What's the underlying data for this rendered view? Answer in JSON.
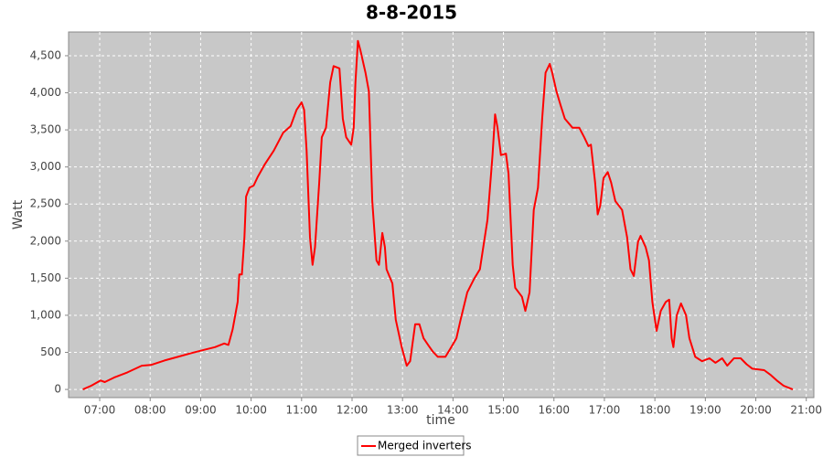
{
  "chart_data": {
    "type": "line",
    "title": "8-8-2015",
    "x_label": "time",
    "y_label": "Watt",
    "x": [
      "06:40",
      "06:50",
      "07:01",
      "07:06",
      "07:17",
      "07:33",
      "07:50",
      "08:01",
      "08:17",
      "08:33",
      "08:49",
      "09:06",
      "09:17",
      "09:28",
      "09:33",
      "09:38",
      "09:44",
      "09:46",
      "09:49",
      "09:52",
      "09:54",
      "09:58",
      "10:03",
      "10:08",
      "10:16",
      "10:27",
      "10:38",
      "10:47",
      "10:54",
      "11:00",
      "11:03",
      "11:06",
      "11:10",
      "11:13",
      "11:16",
      "11:21",
      "11:24",
      "11:29",
      "11:34",
      "11:38",
      "11:45",
      "11:49",
      "11:53",
      "11:59",
      "12:02",
      "12:04",
      "12:07",
      "12:10",
      "12:16",
      "12:20",
      "12:24",
      "12:29",
      "12:32",
      "12:36",
      "12:39",
      "12:41",
      "12:48",
      "12:52",
      "12:59",
      "13:05",
      "13:09",
      "13:15",
      "13:20",
      "13:25",
      "13:31",
      "13:36",
      "13:42",
      "13:51",
      "13:58",
      "14:04",
      "14:09",
      "14:17",
      "14:25",
      "14:32",
      "14:36",
      "14:41",
      "14:47",
      "14:50",
      "14:53",
      "14:57",
      "15:03",
      "15:06",
      "15:11",
      "15:14",
      "15:22",
      "15:26",
      "15:31",
      "15:36",
      "15:41",
      "15:46",
      "15:50",
      "15:55",
      "15:58",
      "16:03",
      "16:08",
      "16:13",
      "16:22",
      "16:30",
      "16:36",
      "16:41",
      "16:44",
      "16:49",
      "16:52",
      "16:55",
      "16:59",
      "17:04",
      "17:08",
      "17:13",
      "17:21",
      "17:27",
      "17:31",
      "17:35",
      "17:40",
      "17:43",
      "17:49",
      "17:53",
      "17:57",
      "18:02",
      "18:07",
      "18:13",
      "18:17",
      "18:20",
      "18:22",
      "18:26",
      "18:31",
      "18:37",
      "18:41",
      "18:48",
      "18:56",
      "19:05",
      "19:12",
      "19:20",
      "19:26",
      "19:34",
      "19:42",
      "19:49",
      "19:56",
      "20:10",
      "20:17",
      "20:25",
      "20:33",
      "20:44"
    ],
    "series": [
      {
        "name": "Merged inverters",
        "color": "#ff0000",
        "values": [
          0,
          50,
          120,
          100,
          160,
          230,
          320,
          330,
          390,
          440,
          490,
          540,
          570,
          620,
          600,
          810,
          1180,
          1550,
          1550,
          2050,
          2600,
          2720,
          2750,
          2870,
          3030,
          3220,
          3460,
          3550,
          3770,
          3870,
          3770,
          3220,
          2050,
          1680,
          1920,
          2790,
          3400,
          3530,
          4140,
          4360,
          4330,
          3650,
          3400,
          3300,
          3530,
          4140,
          4700,
          4570,
          4270,
          4020,
          2540,
          1740,
          1680,
          2110,
          1920,
          1620,
          1430,
          940,
          570,
          320,
          380,
          880,
          880,
          690,
          590,
          510,
          440,
          440,
          570,
          690,
          940,
          1310,
          1490,
          1620,
          1920,
          2290,
          3160,
          3710,
          3530,
          3160,
          3180,
          2910,
          1680,
          1370,
          1250,
          1060,
          1310,
          2420,
          2720,
          3650,
          4270,
          4390,
          4270,
          4020,
          3830,
          3650,
          3530,
          3530,
          3400,
          3280,
          3300,
          2790,
          2360,
          2480,
          2850,
          2930,
          2790,
          2540,
          2420,
          2050,
          1620,
          1530,
          1990,
          2070,
          1920,
          1740,
          1180,
          790,
          1060,
          1180,
          1210,
          690,
          570,
          1000,
          1160,
          1000,
          690,
          440,
          380,
          420,
          360,
          420,
          320,
          420,
          420,
          340,
          280,
          260,
          200,
          120,
          50,
          0
        ]
      }
    ],
    "xlim": [
      "06:23",
      "21:09"
    ],
    "xticks": [
      "07:00",
      "08:00",
      "09:00",
      "10:00",
      "11:00",
      "12:00",
      "13:00",
      "14:00",
      "15:00",
      "16:00",
      "17:00",
      "18:00",
      "19:00",
      "20:00",
      "21:00"
    ],
    "ylim": [
      -110,
      4820
    ],
    "yticks": [
      0,
      500,
      {
        "value": 1000,
        "label": "1,000"
      },
      {
        "value": 1500,
        "label": "1,500"
      },
      {
        "value": 2000,
        "label": "2,000"
      },
      {
        "value": 2500,
        "label": "2,500"
      },
      {
        "value": 3000,
        "label": "3,000"
      },
      {
        "value": 3500,
        "label": "3,500"
      },
      {
        "value": 4000,
        "label": "4,000"
      },
      {
        "value": 4500,
        "label": "4,500"
      }
    ],
    "grid": true,
    "legend": "bottom"
  }
}
